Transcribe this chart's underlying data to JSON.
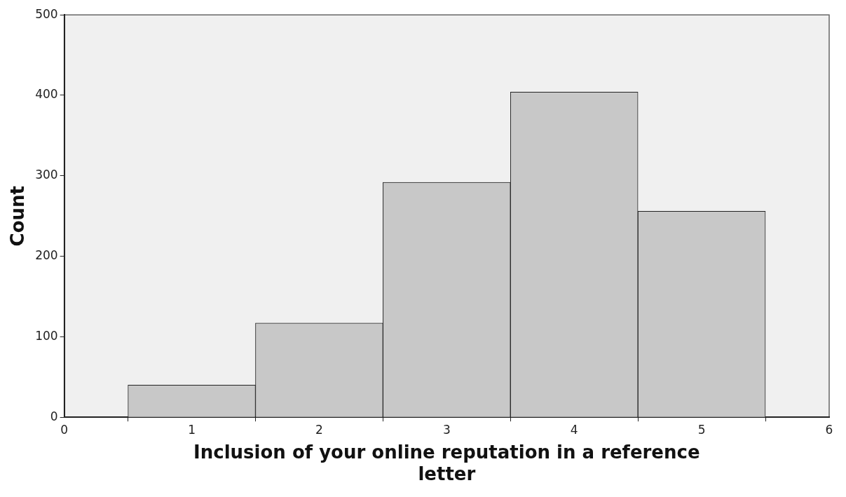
{
  "chart_data": {
    "type": "histogram",
    "xlabel": "Inclusion of your online reputation in a reference letter",
    "ylabel": "Count",
    "bins": [
      0.5,
      1.5,
      2.5,
      3.5,
      4.5,
      5.5
    ],
    "values": [
      40,
      117,
      292,
      404,
      256
    ],
    "color": "#c8c8c8",
    "xlim": [
      0,
      6
    ],
    "xticks": [
      0,
      1,
      2,
      3,
      4,
      5,
      6
    ],
    "ylim": [
      0,
      500
    ],
    "yticks": [
      0,
      100,
      200,
      300,
      400,
      500
    ]
  }
}
